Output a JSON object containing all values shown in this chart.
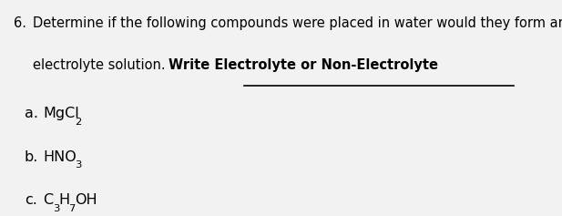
{
  "background_color": "#f2f2f2",
  "text_color": "#000000",
  "question_number": "6.",
  "question_line1": "Determine if the following compounds were placed in water would they form and",
  "question_line2_plain": "electrolyte solution.  ",
  "question_line2_bold_underline": "Write Electrolyte or Non-Electrolyte",
  "font_size_main": 10.5,
  "font_size_items": 11.5,
  "fig_width": 6.17,
  "fig_height": 2.37,
  "dpi": 100
}
